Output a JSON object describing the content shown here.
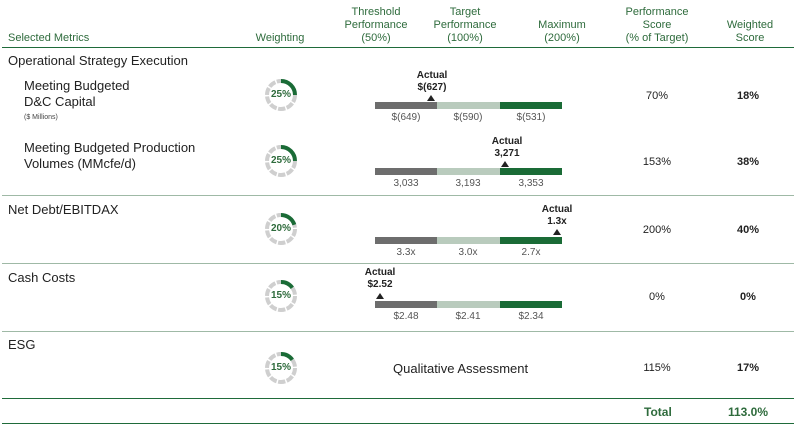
{
  "headers": {
    "selected_metrics": "Selected Metrics",
    "weighting": "Weighting",
    "threshold": [
      "Threshold",
      "Performance",
      "(50%)"
    ],
    "target": [
      "Target",
      "Performance",
      "(100%)"
    ],
    "maximum": [
      "Maximum",
      "(200%)"
    ],
    "performance_score": [
      "Performance",
      "Score",
      "(% of Target)"
    ],
    "weighted_score": [
      "Weighted",
      "Score"
    ]
  },
  "section_title": "Operational Strategy Execution",
  "rows": [
    {
      "label": [
        "Meeting Budgeted",
        "D&C Capital"
      ],
      "sublabel": "($ Millions)",
      "weight": "25%",
      "weight_value": 25,
      "actual_label": "Actual",
      "actual_value": "$(627)",
      "actual_numeric": -627,
      "threshold_numeric": -649,
      "maximum_numeric": -531,
      "ticks": [
        "$(649)",
        "$(590)",
        "$(531)"
      ],
      "score": "70%",
      "weighted": "18%"
    },
    {
      "label": [
        "Meeting Budgeted Production",
        "Volumes (MMcfe/d)"
      ],
      "weight": "25%",
      "weight_value": 25,
      "actual_label": "Actual",
      "actual_value": "3,271",
      "actual_numeric": 3271,
      "threshold_numeric": 3033,
      "maximum_numeric": 3353,
      "ticks": [
        "3,033",
        "3,193",
        "3,353"
      ],
      "score": "153%",
      "weighted": "38%"
    },
    {
      "label": [
        "Net Debt/EBITDAX"
      ],
      "weight": "20%",
      "weight_value": 20,
      "actual_label": "Actual",
      "actual_value": "1.3x",
      "ticks": [
        "3.3x",
        "3.0x",
        "2.7x"
      ],
      "score": "200%",
      "weighted": "40%"
    },
    {
      "label": [
        "Cash Costs"
      ],
      "weight": "15%",
      "weight_value": 15,
      "actual_label": "Actual",
      "actual_value": "$2.52",
      "ticks": [
        "$2.48",
        "$2.41",
        "$2.34"
      ],
      "score": "0%",
      "weighted": "0%"
    },
    {
      "label": [
        "ESG"
      ],
      "weight": "15%",
      "weight_value": 15,
      "qualitative": "Qualitative Assessment",
      "score": "115%",
      "weighted": "17%"
    }
  ],
  "total": {
    "label": "Total",
    "value": "113.0%"
  },
  "colors": {
    "accent_green": "#1a6b36",
    "header_green": "#2e6b3c",
    "threshold_gray": "#6d6d6d",
    "target_light_green": "#b9cbbd",
    "ring_gray": "#cfcfcf"
  }
}
